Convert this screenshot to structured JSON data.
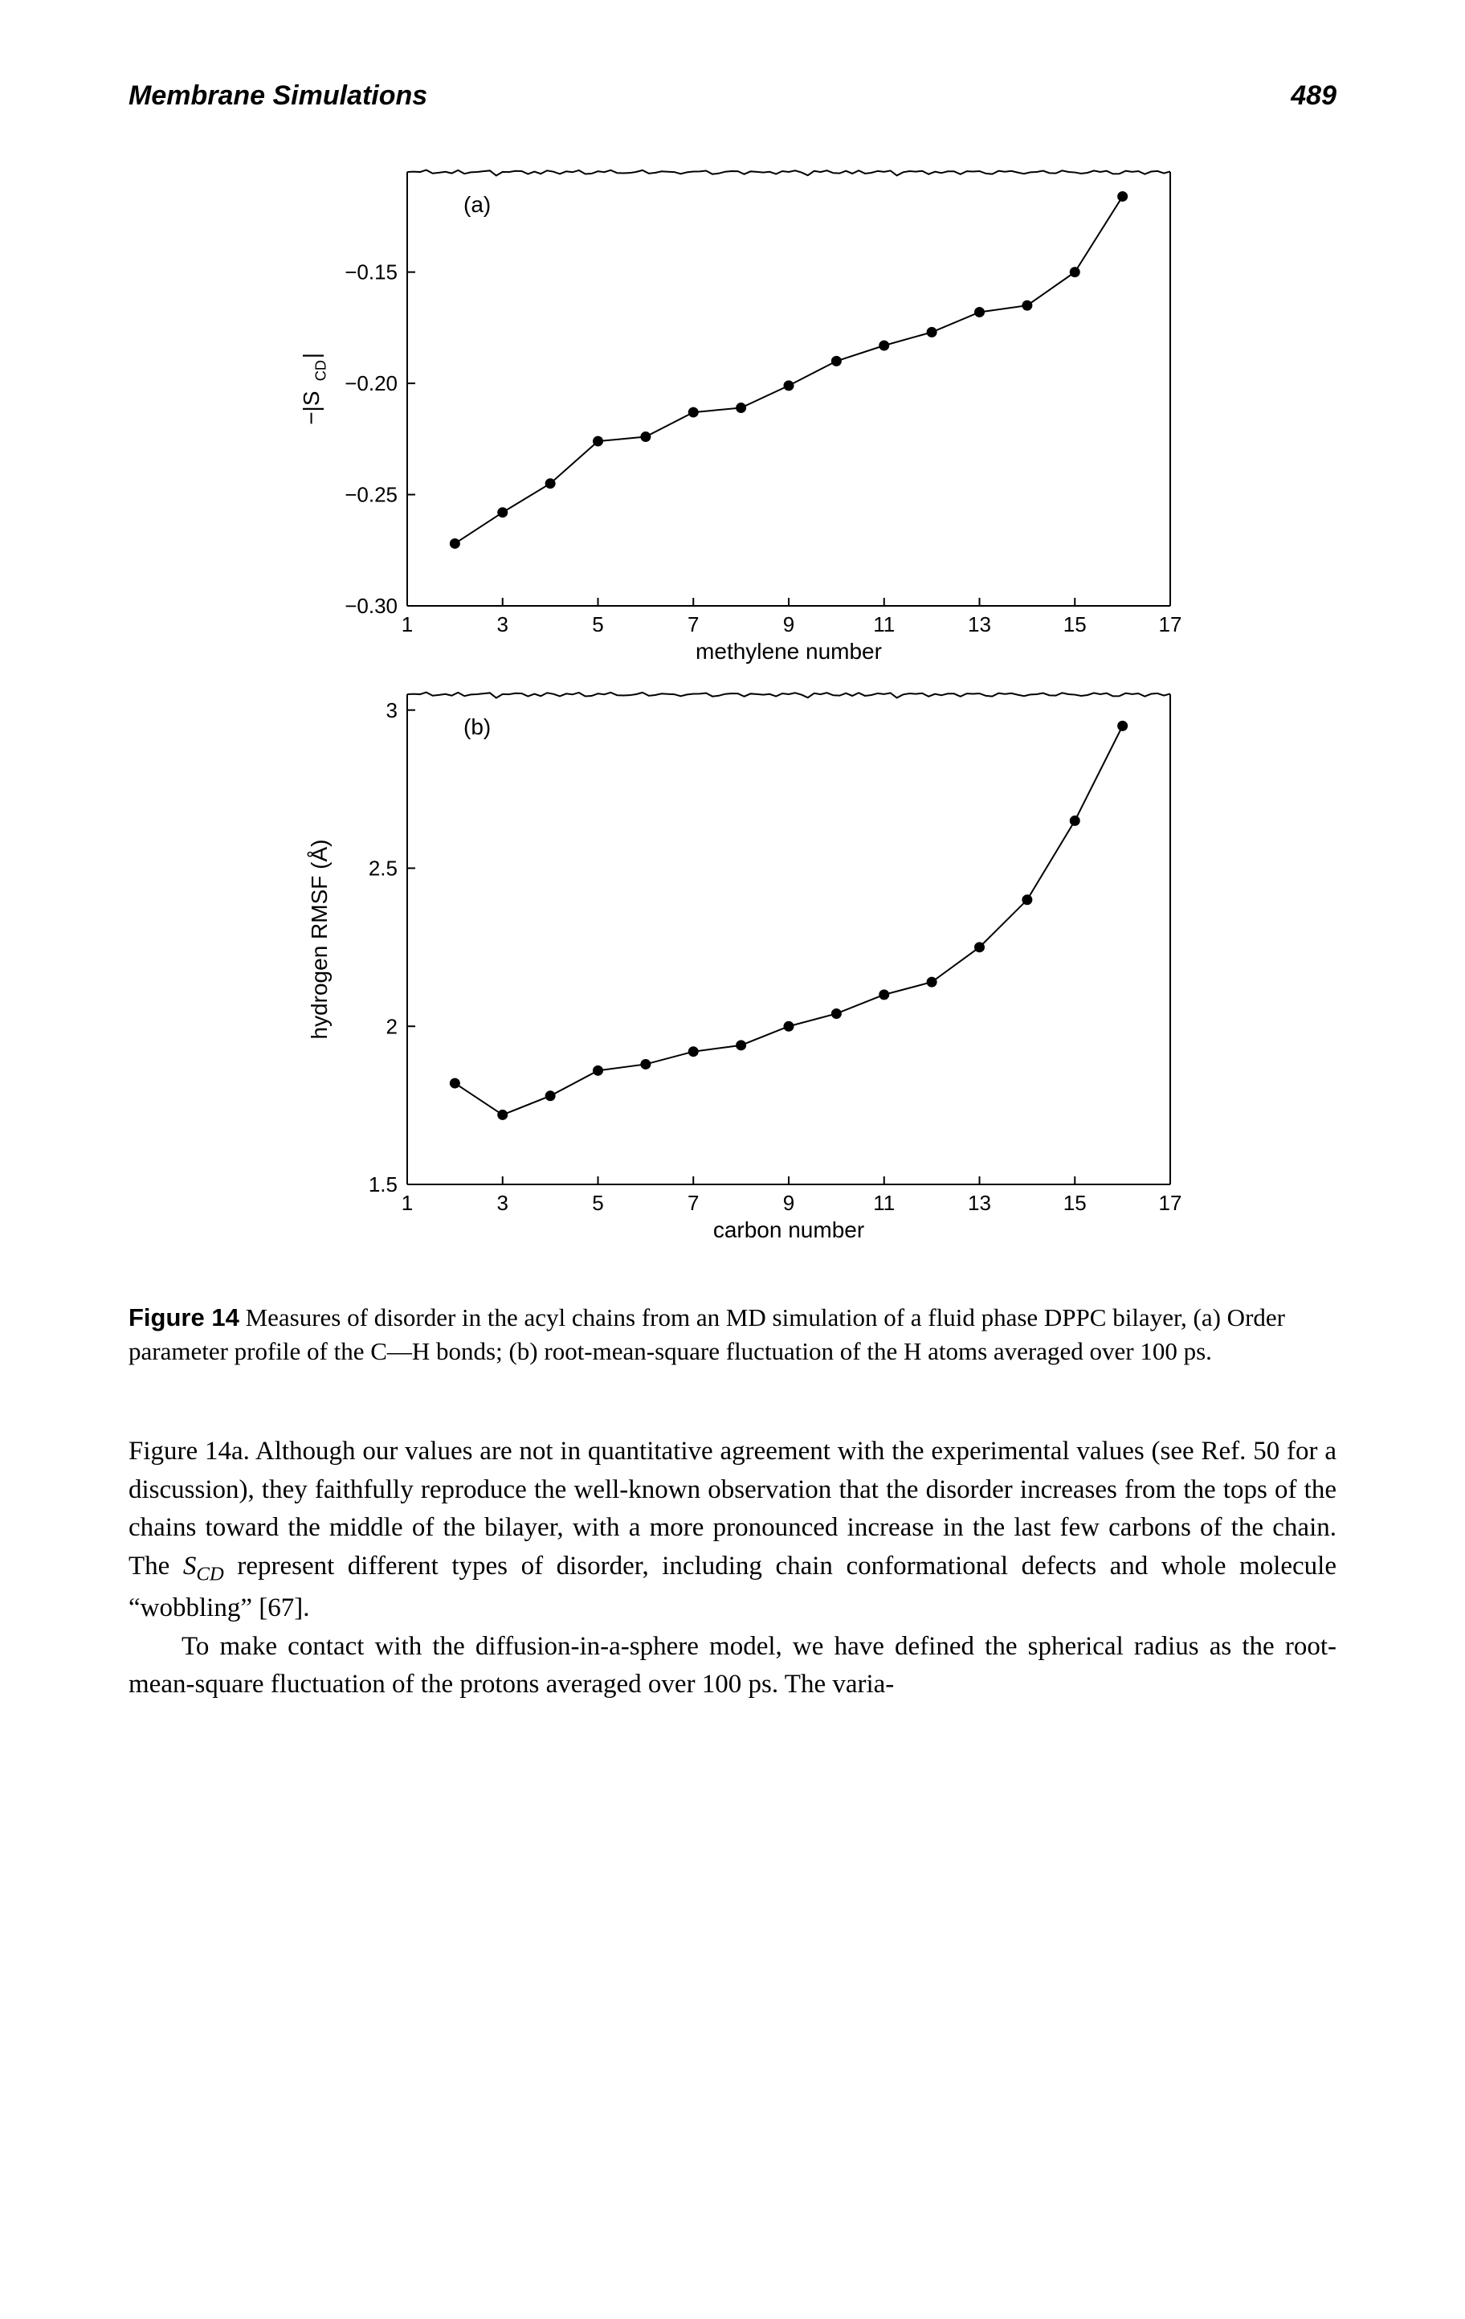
{
  "header": {
    "title": "Membrane Simulations",
    "page": "489"
  },
  "figure": {
    "label": "Figure 14",
    "caption_rest": "   Measures of disorder in the acyl chains from an MD simulation of a fluid phase DPPC bilayer, (a) Order parameter profile of the C—H bonds; (b) root-mean-square fluctuation of the H atoms averaged over 100 ps."
  },
  "chart_a": {
    "type": "line",
    "panel_label": "(a)",
    "xlabel": "methylene number",
    "ylabel": "-|S_CD|",
    "xlim": [
      1,
      17
    ],
    "ylim": [
      -0.3,
      -0.105
    ],
    "xticks": [
      1,
      3,
      5,
      7,
      9,
      11,
      13,
      15,
      17
    ],
    "yticks": [
      -0.3,
      -0.25,
      -0.2,
      -0.15
    ],
    "line_color": "#000000",
    "marker_fill": "#000000",
    "marker_radius": 6,
    "line_width": 2,
    "axis_color": "#000000",
    "tick_fontsize": 26,
    "label_fontsize": 28,
    "tick_len": 10,
    "background_color": "#ffffff",
    "top_border_style": "noisy",
    "data": [
      {
        "x": 2,
        "y": -0.272
      },
      {
        "x": 3,
        "y": -0.258
      },
      {
        "x": 4,
        "y": -0.245
      },
      {
        "x": 5,
        "y": -0.226
      },
      {
        "x": 6,
        "y": -0.224
      },
      {
        "x": 7,
        "y": -0.213
      },
      {
        "x": 8,
        "y": -0.211
      },
      {
        "x": 9,
        "y": -0.201
      },
      {
        "x": 10,
        "y": -0.19
      },
      {
        "x": 11,
        "y": -0.183
      },
      {
        "x": 12,
        "y": -0.177
      },
      {
        "x": 13,
        "y": -0.168
      },
      {
        "x": 14,
        "y": -0.165
      },
      {
        "x": 15,
        "y": -0.15
      },
      {
        "x": 16,
        "y": -0.116
      }
    ]
  },
  "chart_b": {
    "type": "line",
    "panel_label": "(b)",
    "xlabel": "carbon number",
    "ylabel": "hydrogen RMSF (Å)",
    "xlim": [
      1,
      17
    ],
    "ylim": [
      1.5,
      3.05
    ],
    "xticks": [
      1,
      3,
      5,
      7,
      9,
      11,
      13,
      15,
      17
    ],
    "yticks": [
      1.5,
      2.0,
      2.5,
      3.0
    ],
    "line_color": "#000000",
    "marker_fill": "#000000",
    "marker_radius": 6,
    "line_width": 2,
    "axis_color": "#000000",
    "tick_fontsize": 26,
    "label_fontsize": 28,
    "tick_len": 10,
    "background_color": "#ffffff",
    "top_border_style": "noisy",
    "data": [
      {
        "x": 2,
        "y": 1.82
      },
      {
        "x": 3,
        "y": 1.72
      },
      {
        "x": 4,
        "y": 1.78
      },
      {
        "x": 5,
        "y": 1.86
      },
      {
        "x": 6,
        "y": 1.88
      },
      {
        "x": 7,
        "y": 1.92
      },
      {
        "x": 8,
        "y": 1.94
      },
      {
        "x": 9,
        "y": 2.0
      },
      {
        "x": 10,
        "y": 2.04
      },
      {
        "x": 11,
        "y": 2.1
      },
      {
        "x": 12,
        "y": 2.14
      },
      {
        "x": 13,
        "y": 2.25
      },
      {
        "x": 14,
        "y": 2.4
      },
      {
        "x": 15,
        "y": 2.65
      },
      {
        "x": 16,
        "y": 2.95
      }
    ]
  },
  "body": {
    "p1_a": "Figure 14a. Although our values are not in quantitative agreement with the experimental values (see Ref. 50 for a discussion), they faithfully reproduce the well-known observation that the disorder increases from the tops of the chains toward the middle of the bilayer, with a more pronounced increase in the last few carbons of the chain. The ",
    "p1_scd": "S",
    "p1_scd_sub": "CD",
    "p1_b": " represent different types of disorder, including chain conformational defects and whole molecule “wobbling” [67].",
    "p2": "To make contact with the diffusion-in-a-sphere model, we have defined the spherical radius as the root-mean-square fluctuation of the protons averaged over 100 ps. The varia-"
  }
}
